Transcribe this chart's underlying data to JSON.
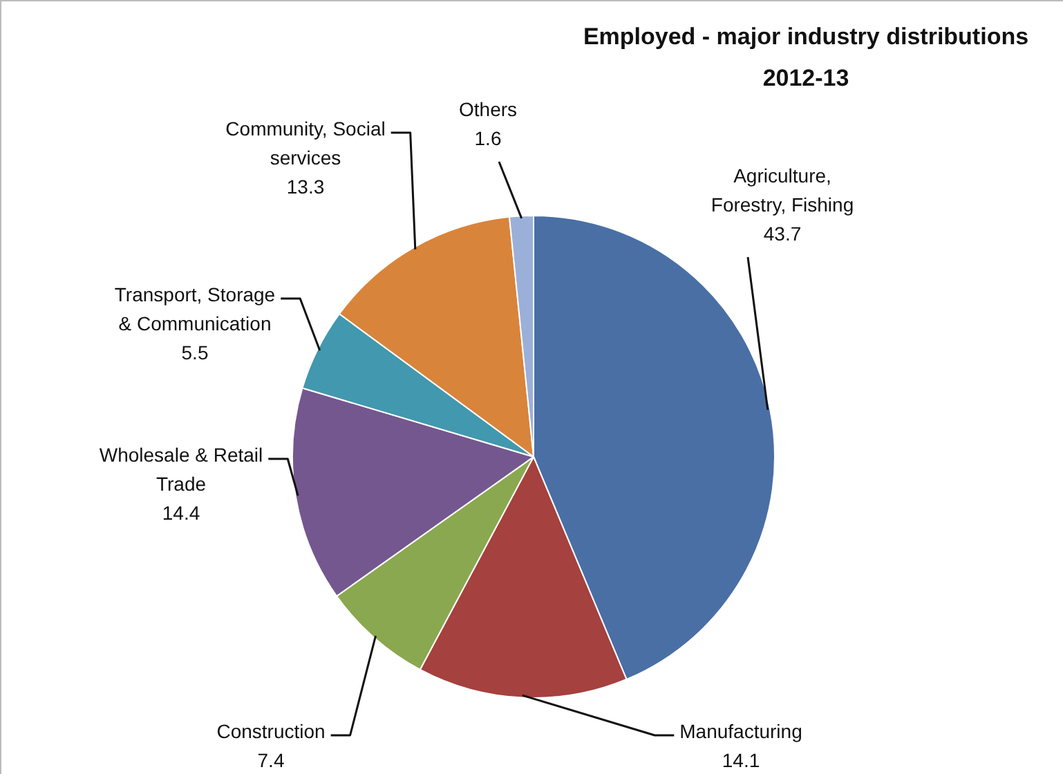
{
  "chart_data": {
    "type": "pie",
    "title": "Employed - major industry distributions 2012-13",
    "categories": [
      "Agriculture, Forestry, Fishing",
      "Manufacturing",
      "Construction",
      "Wholesale & Retail Trade",
      "Transport, Storage & Communication",
      "Community, Social services",
      "Others"
    ],
    "values": [
      43.7,
      14.1,
      7.4,
      14.4,
      5.5,
      13.3,
      1.6
    ],
    "colors": [
      "#4a6fa5",
      "#a5413e",
      "#8aa84f",
      "#74578f",
      "#4298ae",
      "#d9843b",
      "#9bb0d8"
    ],
    "data_labels": true,
    "legend": false
  }
}
